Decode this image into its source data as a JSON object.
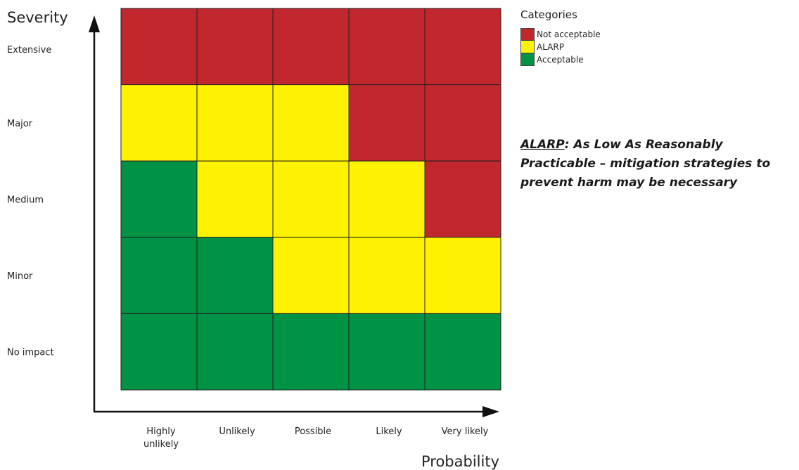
{
  "chart_data": {
    "type": "heatmap",
    "title": "",
    "xlabel": "Probability",
    "ylabel": "Severity",
    "x_categories": [
      "Highly unlikely",
      "Unlikely",
      "Possible",
      "Likely",
      "Very likely"
    ],
    "y_categories": [
      "Extensive",
      "Major",
      "Medium",
      "Minor",
      "No impact"
    ],
    "cells": [
      [
        "Not acceptable",
        "Not acceptable",
        "Not acceptable",
        "Not acceptable",
        "Not acceptable"
      ],
      [
        "ALARP",
        "ALARP",
        "ALARP",
        "Not acceptable",
        "Not acceptable"
      ],
      [
        "Acceptable",
        "ALARP",
        "ALARP",
        "ALARP",
        "Not acceptable"
      ],
      [
        "Acceptable",
        "Acceptable",
        "ALARP",
        "ALARP",
        "ALARP"
      ],
      [
        "Acceptable",
        "Acceptable",
        "Acceptable",
        "Acceptable",
        "Acceptable"
      ]
    ],
    "category_colors": {
      "Not acceptable": "#c1272d",
      "ALARP": "#fff200",
      "Acceptable": "#009245"
    },
    "grid": true,
    "legend_position": "top-right"
  },
  "legend": {
    "title": "Categories",
    "items": [
      {
        "label": "Not acceptable",
        "color": "#c1272d"
      },
      {
        "label": "ALARP",
        "color": "#fff200"
      },
      {
        "label": "Acceptable",
        "color": "#009245"
      }
    ]
  },
  "note": {
    "term": "ALARP",
    "text": ": As Low As Reasonably Practicable – mitigation strategies to prevent harm may be necessary"
  },
  "colors": {
    "axis": "#111111",
    "gridline": "#222222"
  }
}
